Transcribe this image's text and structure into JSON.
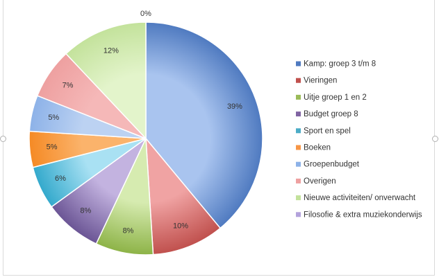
{
  "chart_data": {
    "type": "pie",
    "title": "",
    "slices": [
      {
        "label": "Kamp: groep 3 t/m 8",
        "value": 39,
        "display": "39%",
        "color": "#a9c4ef",
        "edge": "#4f7ac0"
      },
      {
        "label": "Vieringen",
        "value": 10,
        "display": "10%",
        "color": "#f0a3a3",
        "edge": "#c0504d"
      },
      {
        "label": "Uitje groep 1 en 2",
        "value": 8,
        "display": "8%",
        "color": "#d6ebb0",
        "edge": "#8db347"
      },
      {
        "label": "Budget groep 8",
        "value": 8,
        "display": "8%",
        "color": "#c3b3e0",
        "edge": "#6b5595"
      },
      {
        "label": "Sport en spel",
        "value": 6,
        "display": "6%",
        "color": "#a9e1f3",
        "edge": "#33a9cc"
      },
      {
        "label": "Boeken",
        "value": 5,
        "display": "5%",
        "color": "#fbb36b",
        "edge": "#f58a25"
      },
      {
        "label": "Groepenbudget",
        "value": 5,
        "display": "5%",
        "color": "#bcd2f2",
        "edge": "#8db2e8"
      },
      {
        "label": "Overigen",
        "value": 7,
        "display": "7%",
        "color": "#f5b8b8",
        "edge": "#eea0a0"
      },
      {
        "label": "Nieuwe activiteiten/ onverwacht",
        "value": 12,
        "display": "12%",
        "color": "#e3f4cb",
        "edge": "#c3e29b"
      },
      {
        "label": "Filosofie & extra muziekonderwijs",
        "value": 0,
        "display": "0%",
        "color": "#cfc2e8",
        "edge": "#9f8ad0"
      }
    ],
    "legend_position": "right",
    "legend_colors": [
      "#4f7ac0",
      "#c0504d",
      "#9bbb59",
      "#8064a2",
      "#4bacc6",
      "#f79646",
      "#8db2e8",
      "#eea0a0",
      "#c3e29b",
      "#b3a2dc"
    ]
  }
}
